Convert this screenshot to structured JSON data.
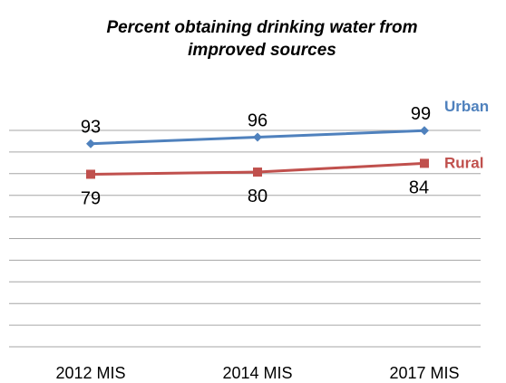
{
  "chart_data": {
    "type": "line",
    "title_lines": [
      "Percent obtaining drinking water from",
      "improved sources"
    ],
    "categories": [
      "2012 MIS",
      "2014 MIS",
      "2017 MIS"
    ],
    "series": [
      {
        "name": "Urban",
        "values": [
          93,
          96,
          99
        ],
        "color": "#4F81BD",
        "marker": "diamond",
        "label_position": "above"
      },
      {
        "name": "Rural",
        "values": [
          79,
          80,
          84
        ],
        "color": "#C0504D",
        "marker": "square",
        "label_position": "below"
      }
    ],
    "ylim": [
      0,
      109
    ],
    "grid": true,
    "legend": "inline-right"
  }
}
